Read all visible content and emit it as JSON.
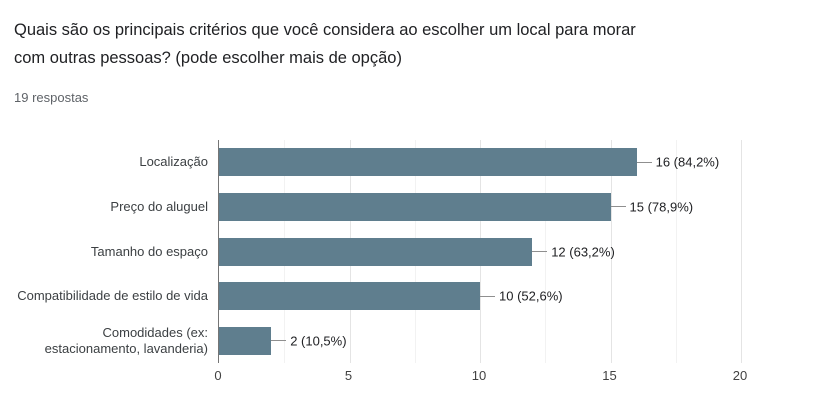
{
  "header": {
    "title": "Quais são os principais critérios que você considera ao escolher um local para morar com outras pessoas? (pode escolher mais de opção)",
    "responses_count": "19 respostas"
  },
  "chart_data": {
    "type": "bar",
    "orientation": "horizontal",
    "title": "",
    "xlabel": "",
    "ylabel": "",
    "categories": [
      "Localização",
      "Preço do aluguel",
      "Tamanho do espaço",
      "Compatibilidade de estilo de vida",
      "Comodidades (ex: estacionamento, lavanderia)"
    ],
    "category_display_lines": [
      [
        "Localização"
      ],
      [
        "Preço do aluguel"
      ],
      [
        "Tamanho do espaço"
      ],
      [
        "Compatibilidade de estilo de vida"
      ],
      [
        "Comodidades (ex:",
        "estacionamento, lavanderia)"
      ]
    ],
    "values": [
      16,
      15,
      12,
      10,
      2
    ],
    "percentages": [
      84.2,
      78.9,
      63.2,
      52.6,
      10.5
    ],
    "value_labels": [
      "16 (84,2%)",
      "15 (78,9%)",
      "12 (63,2%)",
      "10 (52,6%)",
      "2 (10,5%)"
    ],
    "xlim": [
      0,
      20
    ],
    "x_ticks": [
      0,
      5,
      10,
      15,
      20
    ],
    "minor_tick_step": 2.5,
    "grid": true,
    "legend": "none",
    "colors": {
      "bar": "#5f7e8e",
      "axis_line": "#757575",
      "major_grid": "#e4e4e4",
      "minor_grid": "#f2f2f2",
      "title_text": "#202124",
      "responses_text": "#5f6368",
      "category_text": "#3c4043",
      "value_text": "#202124",
      "tick_text": "#424242",
      "leader_line": "#8f8f8f"
    }
  }
}
